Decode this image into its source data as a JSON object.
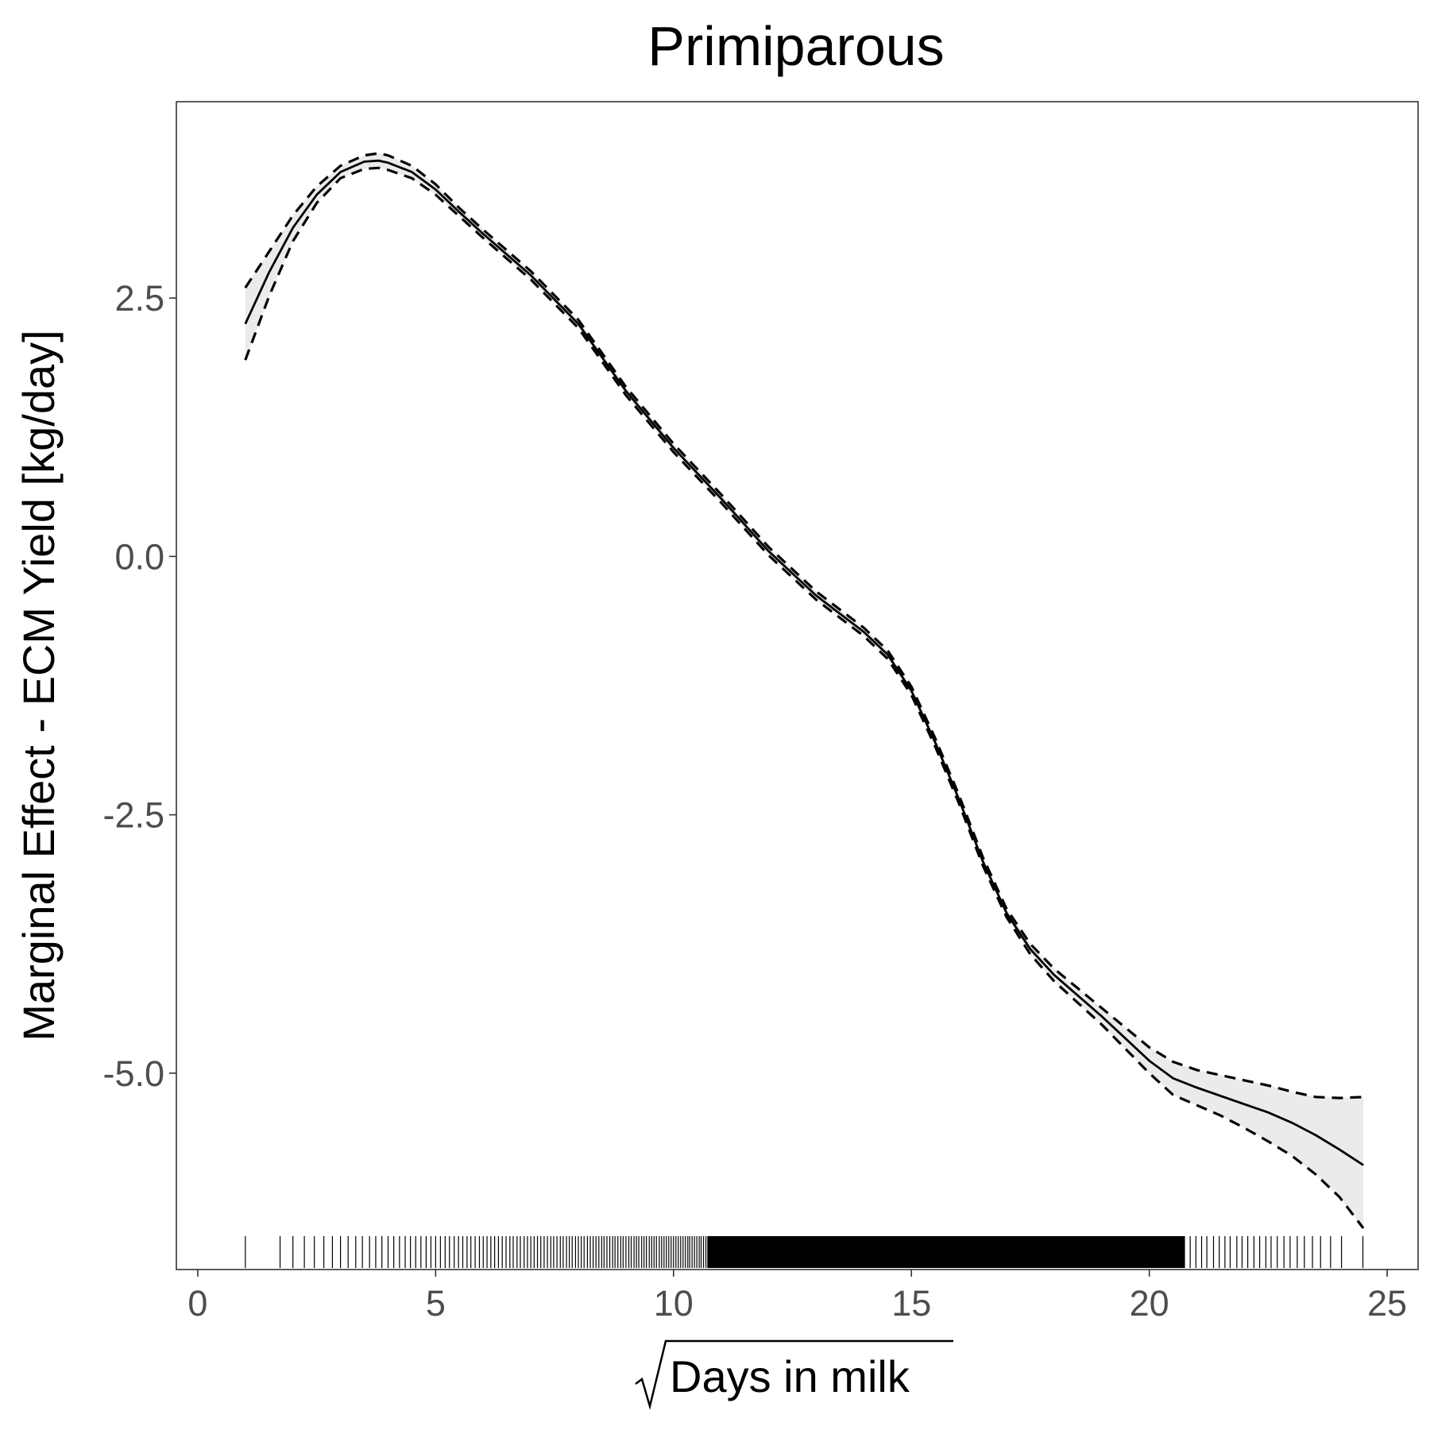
{
  "chart_data": {
    "type": "line",
    "title": "Primiparous",
    "xlabel": "Days in milk",
    "xlabel_prefix": "√",
    "ylabel": "Marginal Effect - ECM Yield [kg/day]",
    "xlim": [
      -0.45,
      25.65
    ],
    "ylim": [
      -6.9,
      4.4
    ],
    "x_ticks": [
      0,
      5,
      10,
      15,
      20,
      25
    ],
    "x_tick_labels": [
      "0",
      "5",
      "10",
      "15",
      "20",
      "25"
    ],
    "y_ticks": [
      2.5,
      0.0,
      -2.5,
      -5.0
    ],
    "y_tick_labels": [
      "2.5",
      "0.0",
      "-2.5",
      "-5.0"
    ],
    "grid": false,
    "series": [
      {
        "role": "estimate",
        "style": "solid",
        "x": [
          1.0,
          1.5,
          2.0,
          2.5,
          3.0,
          3.5,
          3.8,
          4.0,
          4.5,
          5.0,
          5.5,
          6.0,
          7.0,
          8.0,
          9.0,
          10.0,
          11.0,
          12.0,
          13.0,
          14.0,
          14.5,
          15.0,
          15.5,
          16.0,
          16.5,
          17.0,
          17.5,
          18.0,
          19.0,
          20.0,
          20.5,
          21.0,
          21.5,
          22.0,
          22.5,
          23.0,
          23.5,
          24.0,
          24.5
        ],
        "y": [
          2.25,
          2.75,
          3.18,
          3.5,
          3.72,
          3.82,
          3.83,
          3.81,
          3.72,
          3.55,
          3.33,
          3.12,
          2.72,
          2.25,
          1.6,
          1.05,
          0.56,
          0.05,
          -0.38,
          -0.73,
          -0.95,
          -1.3,
          -1.8,
          -2.35,
          -2.95,
          -3.45,
          -3.8,
          -4.05,
          -4.45,
          -4.88,
          -5.05,
          -5.14,
          -5.22,
          -5.3,
          -5.38,
          -5.48,
          -5.6,
          -5.74,
          -5.89
        ]
      },
      {
        "role": "upper-bound",
        "style": "dashed",
        "x": [
          1.0,
          1.5,
          2.0,
          2.5,
          3.0,
          3.5,
          3.8,
          4.0,
          4.5,
          5.0,
          5.5,
          6.0,
          7.0,
          8.0,
          9.0,
          10.0,
          11.0,
          12.0,
          13.0,
          14.0,
          14.5,
          15.0,
          15.5,
          16.0,
          16.5,
          17.0,
          17.5,
          18.0,
          19.0,
          20.0,
          20.5,
          21.0,
          21.5,
          22.0,
          22.5,
          23.0,
          23.5,
          24.0,
          24.5
        ],
        "y": [
          2.6,
          2.95,
          3.3,
          3.58,
          3.78,
          3.88,
          3.9,
          3.88,
          3.78,
          3.6,
          3.37,
          3.16,
          2.76,
          2.29,
          1.64,
          1.09,
          0.6,
          0.09,
          -0.34,
          -0.69,
          -0.91,
          -1.26,
          -1.76,
          -2.31,
          -2.91,
          -3.41,
          -3.75,
          -3.99,
          -4.37,
          -4.75,
          -4.89,
          -4.97,
          -5.02,
          -5.07,
          -5.12,
          -5.18,
          -5.23,
          -5.24,
          -5.23
        ]
      },
      {
        "role": "lower-bound",
        "style": "dashed",
        "x": [
          1.0,
          1.5,
          2.0,
          2.5,
          3.0,
          3.5,
          3.8,
          4.0,
          4.5,
          5.0,
          5.5,
          6.0,
          7.0,
          8.0,
          9.0,
          10.0,
          11.0,
          12.0,
          13.0,
          14.0,
          14.5,
          15.0,
          15.5,
          16.0,
          16.5,
          17.0,
          17.5,
          18.0,
          19.0,
          20.0,
          20.5,
          21.0,
          21.5,
          22.0,
          22.5,
          23.0,
          23.5,
          24.0,
          24.5
        ],
        "y": [
          1.9,
          2.52,
          3.05,
          3.42,
          3.66,
          3.75,
          3.76,
          3.74,
          3.66,
          3.5,
          3.29,
          3.08,
          2.68,
          2.21,
          1.56,
          1.01,
          0.52,
          0.01,
          -0.42,
          -0.77,
          -0.99,
          -1.34,
          -1.84,
          -2.39,
          -2.99,
          -3.49,
          -3.85,
          -4.11,
          -4.53,
          -5.0,
          -5.21,
          -5.31,
          -5.41,
          -5.53,
          -5.66,
          -5.8,
          -5.98,
          -6.2,
          -6.5
        ]
      }
    ],
    "rug_x": [
      1.0,
      1.73,
      2.0,
      2.24,
      2.45,
      2.65,
      2.83,
      3.0,
      3.16,
      3.32,
      3.46,
      3.61,
      3.74,
      3.87,
      4.0,
      4.12,
      4.24,
      4.36,
      4.47,
      4.58,
      4.69,
      4.8,
      4.9,
      5.0,
      5.1,
      5.2,
      5.29,
      5.39,
      5.48,
      5.57,
      5.66,
      5.74,
      5.83,
      5.92,
      6.0,
      6.08,
      6.16,
      6.24,
      6.32,
      6.4,
      6.48,
      6.56,
      6.63,
      6.71,
      6.78,
      6.86,
      6.93,
      7.0,
      7.07,
      7.14,
      7.21,
      7.28,
      7.35,
      7.42,
      7.48,
      7.55,
      7.62,
      7.68,
      7.75,
      7.81,
      7.87,
      7.94,
      8.0,
      8.06,
      8.12,
      8.19,
      8.25,
      8.31,
      8.37,
      8.43,
      8.49,
      8.54,
      8.6,
      8.66,
      8.72,
      8.77,
      8.83,
      8.89,
      8.94,
      9.0,
      9.06,
      9.11,
      9.17,
      9.22,
      9.27,
      9.33,
      9.38,
      9.43,
      9.49,
      9.54,
      9.59,
      9.64,
      9.7,
      9.75,
      9.8,
      9.85,
      9.9,
      9.95,
      10.0,
      10.05,
      10.1,
      10.15,
      10.2,
      10.25,
      10.3,
      10.34,
      10.39,
      10.44,
      10.49,
      10.54,
      10.58,
      10.63,
      10.68,
      10.72,
      20.74,
      20.86,
      20.98,
      21.1,
      21.21,
      21.35,
      21.47,
      21.59,
      21.7,
      21.84,
      21.95,
      22.07,
      22.2,
      22.32,
      22.45,
      22.56,
      22.69,
      22.83,
      22.96,
      23.11,
      23.26,
      23.43,
      23.6,
      23.81,
      24.04,
      24.49
    ],
    "rug_dense_range": [
      10.72,
      20.74
    ]
  }
}
